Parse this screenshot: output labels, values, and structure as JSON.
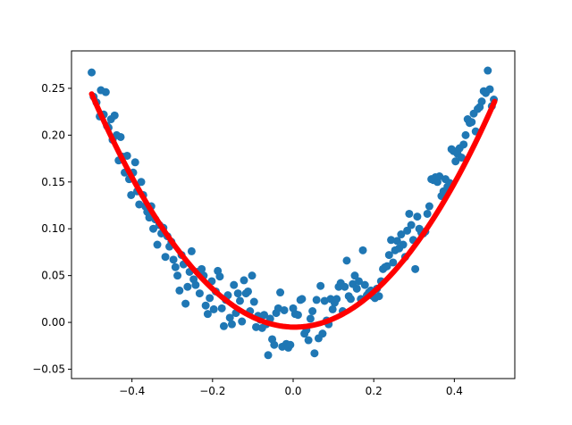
{
  "chart_data": {
    "type": "scatter",
    "title": "",
    "xlabel": "",
    "ylabel": "",
    "xlim": [
      -0.55,
      0.55
    ],
    "ylim": [
      -0.06,
      0.29
    ],
    "grid": false,
    "x_ticks": [
      {
        "value": -0.4,
        "label": "−0.4"
      },
      {
        "value": -0.2,
        "label": "−0.2"
      },
      {
        "value": 0.0,
        "label": "0.0"
      },
      {
        "value": 0.2,
        "label": "0.2"
      },
      {
        "value": 0.4,
        "label": "0.4"
      }
    ],
    "y_ticks": [
      {
        "value": -0.05,
        "label": "−0.05"
      },
      {
        "value": 0.0,
        "label": "0.00"
      },
      {
        "value": 0.05,
        "label": "0.05"
      },
      {
        "value": 0.1,
        "label": "0.10"
      },
      {
        "value": 0.15,
        "label": "0.15"
      },
      {
        "value": 0.2,
        "label": "0.20"
      },
      {
        "value": 0.25,
        "label": "0.25"
      }
    ],
    "scatter_color": "#1f77b4",
    "line_color": "#ff0000",
    "fit_curve": {
      "form": "quadratic",
      "coefficients": {
        "a": 0.98,
        "b": -0.008,
        "c": -0.005
      },
      "x_range": [
        -0.5,
        0.5
      ]
    },
    "points": [
      [
        -0.5,
        0.267
      ],
      [
        -0.495,
        0.241
      ],
      [
        -0.488,
        0.235
      ],
      [
        -0.48,
        0.22
      ],
      [
        -0.477,
        0.248
      ],
      [
        -0.47,
        0.222
      ],
      [
        -0.465,
        0.246
      ],
      [
        -0.462,
        0.21
      ],
      [
        -0.458,
        0.208
      ],
      [
        -0.452,
        0.217
      ],
      [
        -0.448,
        0.195
      ],
      [
        -0.443,
        0.221
      ],
      [
        -0.438,
        0.2
      ],
      [
        -0.433,
        0.173
      ],
      [
        -0.428,
        0.198
      ],
      [
        -0.423,
        0.177
      ],
      [
        -0.418,
        0.16
      ],
      [
        -0.412,
        0.178
      ],
      [
        -0.407,
        0.153
      ],
      [
        -0.402,
        0.136
      ],
      [
        -0.397,
        0.16
      ],
      [
        -0.392,
        0.171
      ],
      [
        -0.387,
        0.14
      ],
      [
        -0.382,
        0.126
      ],
      [
        -0.377,
        0.15
      ],
      [
        -0.372,
        0.136
      ],
      [
        -0.367,
        0.124
      ],
      [
        -0.362,
        0.118
      ],
      [
        -0.357,
        0.112
      ],
      [
        -0.352,
        0.124
      ],
      [
        -0.347,
        0.1
      ],
      [
        -0.342,
        0.11
      ],
      [
        -0.337,
        0.083
      ],
      [
        -0.332,
        0.104
      ],
      [
        -0.327,
        0.095
      ],
      [
        -0.322,
        0.101
      ],
      [
        -0.317,
        0.07
      ],
      [
        -0.312,
        0.092
      ],
      [
        -0.307,
        0.081
      ],
      [
        -0.302,
        0.086
      ],
      [
        -0.297,
        0.067
      ],
      [
        -0.292,
        0.059
      ],
      [
        -0.287,
        0.05
      ],
      [
        -0.282,
        0.034
      ],
      [
        -0.277,
        0.072
      ],
      [
        -0.272,
        0.062
      ],
      [
        -0.267,
        0.02
      ],
      [
        -0.262,
        0.038
      ],
      [
        -0.257,
        0.054
      ],
      [
        -0.252,
        0.076
      ],
      [
        -0.247,
        0.046
      ],
      [
        -0.242,
        0.04
      ],
      [
        -0.237,
        0.054
      ],
      [
        -0.232,
        0.031
      ],
      [
        -0.227,
        0.057
      ],
      [
        -0.222,
        0.05
      ],
      [
        -0.217,
        0.018
      ],
      [
        -0.212,
        0.009
      ],
      [
        -0.207,
        0.026
      ],
      [
        -0.202,
        0.044
      ],
      [
        -0.197,
        0.014
      ],
      [
        -0.192,
        0.033
      ],
      [
        -0.187,
        0.055
      ],
      [
        -0.182,
        0.049
      ],
      [
        -0.177,
        0.015
      ],
      [
        -0.172,
        -0.004
      ],
      [
        -0.167,
        0.024
      ],
      [
        -0.162,
        0.029
      ],
      [
        -0.157,
        0.005
      ],
      [
        -0.152,
        -0.002
      ],
      [
        -0.147,
        0.04
      ],
      [
        -0.142,
        0.01
      ],
      [
        -0.137,
        0.031
      ],
      [
        -0.132,
        0.023
      ],
      [
        -0.127,
        0.001
      ],
      [
        -0.122,
        0.045
      ],
      [
        -0.117,
        0.031
      ],
      [
        -0.112,
        0.033
      ],
      [
        -0.107,
        0.012
      ],
      [
        -0.102,
        0.05
      ],
      [
        -0.097,
        0.022
      ],
      [
        -0.092,
        -0.005
      ],
      [
        -0.087,
        0.007
      ],
      [
        -0.082,
        0.003
      ],
      [
        -0.077,
        -0.006
      ],
      [
        -0.072,
        0.008
      ],
      [
        -0.067,
        -0.002
      ],
      [
        -0.062,
        -0.035
      ],
      [
        -0.057,
        0.004
      ],
      [
        -0.052,
        -0.018
      ],
      [
        -0.047,
        -0.024
      ],
      [
        -0.042,
        0.01
      ],
      [
        -0.037,
        0.015
      ],
      [
        -0.032,
        0.032
      ],
      [
        -0.027,
        -0.026
      ],
      [
        -0.022,
        0.013
      ],
      [
        -0.017,
        -0.023
      ],
      [
        -0.012,
        -0.027
      ],
      [
        -0.007,
        -0.024
      ],
      [
        0.0,
        0.015
      ],
      [
        0.005,
        0.009
      ],
      [
        0.012,
        0.008
      ],
      [
        0.018,
        0.024
      ],
      [
        0.022,
        0.025
      ],
      [
        0.028,
        -0.012
      ],
      [
        0.033,
        -0.008
      ],
      [
        0.038,
        -0.019
      ],
      [
        0.043,
        0.004
      ],
      [
        0.048,
        0.012
      ],
      [
        0.053,
        -0.033
      ],
      [
        0.058,
        0.024
      ],
      [
        0.063,
        -0.017
      ],
      [
        0.068,
        0.039
      ],
      [
        0.073,
        -0.012
      ],
      [
        0.078,
        0.023
      ],
      [
        0.083,
        0.002
      ],
      [
        0.088,
        -0.002
      ],
      [
        0.093,
        0.025
      ],
      [
        0.098,
        0.014
      ],
      [
        0.103,
        0.021
      ],
      [
        0.108,
        0.025
      ],
      [
        0.113,
        0.038
      ],
      [
        0.118,
        0.042
      ],
      [
        0.123,
        0.012
      ],
      [
        0.128,
        0.038
      ],
      [
        0.133,
        0.066
      ],
      [
        0.138,
        0.028
      ],
      [
        0.143,
        0.025
      ],
      [
        0.148,
        0.041
      ],
      [
        0.153,
        0.05
      ],
      [
        0.158,
        0.036
      ],
      [
        0.163,
        0.044
      ],
      [
        0.168,
        0.025
      ],
      [
        0.173,
        0.077
      ],
      [
        0.178,
        0.04
      ],
      [
        0.183,
        0.029
      ],
      [
        0.188,
        0.032
      ],
      [
        0.193,
        0.034
      ],
      [
        0.198,
        0.028
      ],
      [
        0.203,
        0.026
      ],
      [
        0.208,
        0.036
      ],
      [
        0.213,
        0.028
      ],
      [
        0.218,
        0.044
      ],
      [
        0.223,
        0.057
      ],
      [
        0.228,
        0.059
      ],
      [
        0.233,
        0.06
      ],
      [
        0.238,
        0.072
      ],
      [
        0.243,
        0.088
      ],
      [
        0.248,
        0.064
      ],
      [
        0.253,
        0.077
      ],
      [
        0.258,
        0.087
      ],
      [
        0.263,
        0.079
      ],
      [
        0.268,
        0.094
      ],
      [
        0.273,
        0.083
      ],
      [
        0.278,
        0.07
      ],
      [
        0.283,
        0.098
      ],
      [
        0.288,
        0.116
      ],
      [
        0.293,
        0.104
      ],
      [
        0.298,
        0.088
      ],
      [
        0.303,
        0.057
      ],
      [
        0.308,
        0.113
      ],
      [
        0.313,
        0.1
      ],
      [
        0.318,
        0.096
      ],
      [
        0.323,
        0.095
      ],
      [
        0.328,
        0.097
      ],
      [
        0.333,
        0.116
      ],
      [
        0.338,
        0.124
      ],
      [
        0.343,
        0.153
      ],
      [
        0.348,
        0.152
      ],
      [
        0.353,
        0.155
      ],
      [
        0.358,
        0.15
      ],
      [
        0.363,
        0.156
      ],
      [
        0.368,
        0.135
      ],
      [
        0.373,
        0.14
      ],
      [
        0.378,
        0.153
      ],
      [
        0.383,
        0.145
      ],
      [
        0.388,
        0.149
      ],
      [
        0.393,
        0.185
      ],
      [
        0.398,
        0.183
      ],
      [
        0.403,
        0.172
      ],
      [
        0.408,
        0.18
      ],
      [
        0.413,
        0.186
      ],
      [
        0.418,
        0.176
      ],
      [
        0.423,
        0.19
      ],
      [
        0.428,
        0.2
      ],
      [
        0.433,
        0.217
      ],
      [
        0.438,
        0.213
      ],
      [
        0.443,
        0.214
      ],
      [
        0.448,
        0.223
      ],
      [
        0.453,
        0.204
      ],
      [
        0.458,
        0.228
      ],
      [
        0.463,
        0.23
      ],
      [
        0.468,
        0.236
      ],
      [
        0.473,
        0.247
      ],
      [
        0.478,
        0.245
      ],
      [
        0.483,
        0.269
      ],
      [
        0.488,
        0.249
      ],
      [
        0.493,
        0.231
      ],
      [
        0.498,
        0.238
      ]
    ]
  }
}
